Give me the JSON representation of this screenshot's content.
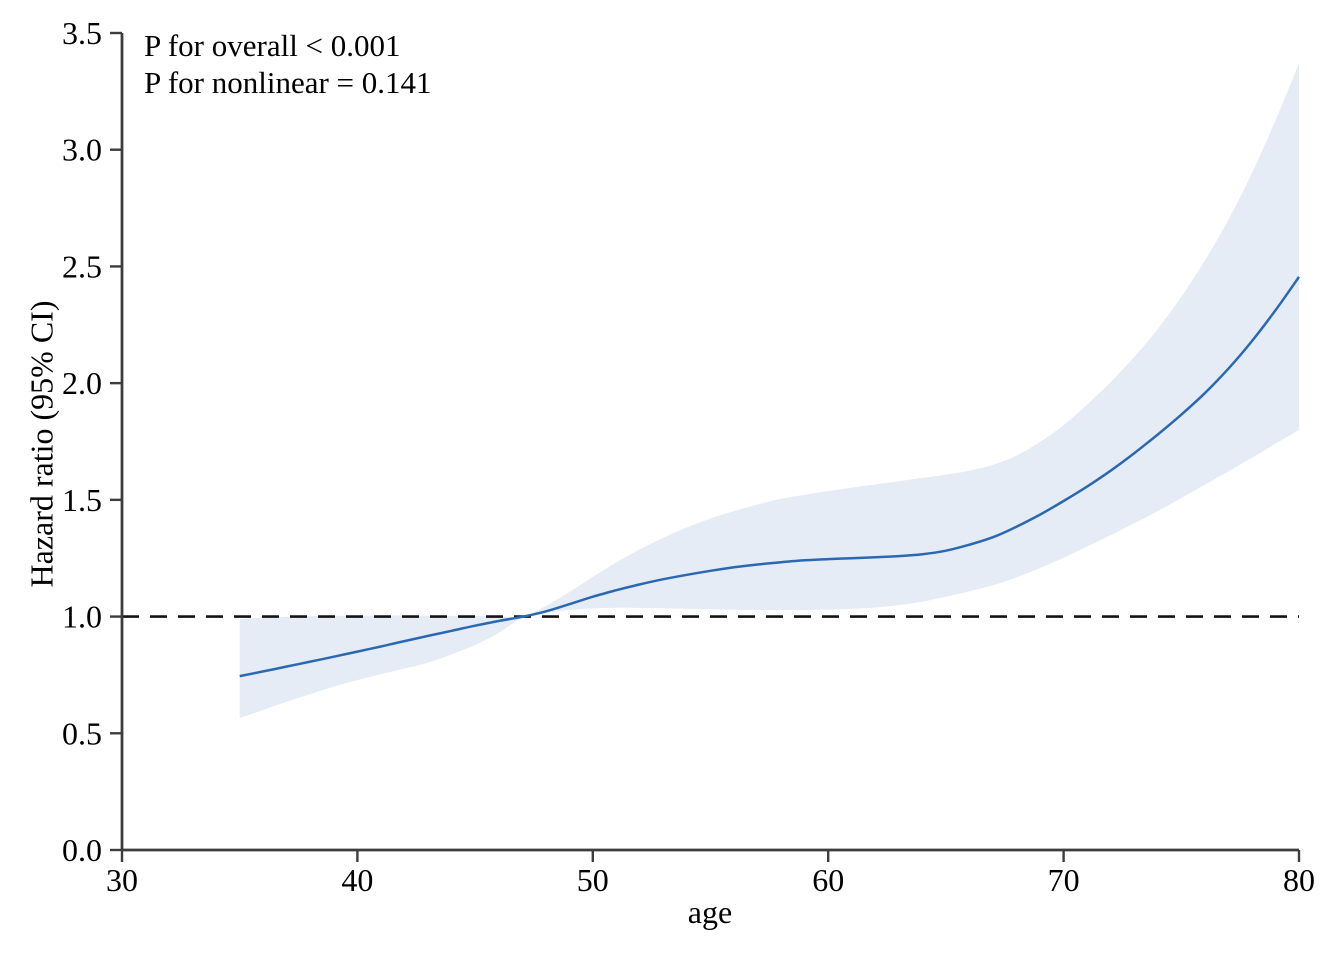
{
  "chart_data": {
    "type": "line",
    "title": "",
    "xlabel": "age",
    "ylabel": "Hazard ratio (95% CI)",
    "xlim": [
      30,
      80
    ],
    "ylim": [
      0,
      3.5
    ],
    "x_ticks": [
      30,
      40,
      50,
      60,
      70,
      80
    ],
    "x_tick_labels": [
      "30",
      "40",
      "50",
      "60",
      "70",
      "80"
    ],
    "y_ticks": [
      0.0,
      0.5,
      1.0,
      1.5,
      2.0,
      2.5,
      3.0,
      3.5
    ],
    "y_tick_labels": [
      "0.0",
      "0.5",
      "1.0",
      "1.5",
      "2.0",
      "2.5",
      "3.0",
      "3.5"
    ],
    "grid": false,
    "legend": "none",
    "reference_line_y": 1.0,
    "annotations": {
      "line1": "P for overall < 0.001",
      "line2": "P for nonlinear = 0.141"
    },
    "colors": {
      "curve": "#2a69b2",
      "ci_band": "#e5ecf5",
      "axis": "#3d3d3d",
      "reference_line": "#141414",
      "text": "#000000"
    },
    "x": [
      35,
      36,
      37,
      38,
      39,
      40,
      41,
      42,
      43,
      44,
      45,
      46,
      47,
      48,
      49,
      50,
      51,
      52,
      53,
      54,
      55,
      56,
      57,
      58,
      59,
      60,
      61,
      62,
      63,
      64,
      65,
      66,
      67,
      68,
      69,
      70,
      71,
      72,
      73,
      74,
      75,
      76,
      77,
      78,
      79,
      80
    ],
    "series": [
      {
        "name": "Hazard ratio",
        "values": [
          0.745,
          0.765,
          0.786,
          0.807,
          0.828,
          0.85,
          0.872,
          0.895,
          0.917,
          0.939,
          0.961,
          0.981,
          0.999,
          1.022,
          1.053,
          1.085,
          1.113,
          1.138,
          1.16,
          1.179,
          1.196,
          1.211,
          1.223,
          1.233,
          1.241,
          1.246,
          1.25,
          1.254,
          1.259,
          1.267,
          1.282,
          1.308,
          1.34,
          1.385,
          1.437,
          1.495,
          1.557,
          1.625,
          1.7,
          1.78,
          1.865,
          1.957,
          2.062,
          2.18,
          2.312,
          2.455
        ]
      },
      {
        "name": "95% CI lower",
        "values": [
          0.565,
          0.6,
          0.635,
          0.668,
          0.7,
          0.728,
          0.753,
          0.777,
          0.802,
          0.838,
          0.878,
          0.93,
          0.995,
          1.015,
          1.028,
          1.035,
          1.038,
          1.037,
          1.035,
          1.033,
          1.031,
          1.029,
          1.028,
          1.028,
          1.028,
          1.03,
          1.033,
          1.039,
          1.049,
          1.064,
          1.085,
          1.108,
          1.134,
          1.168,
          1.208,
          1.252,
          1.3,
          1.348,
          1.4,
          1.452,
          1.508,
          1.565,
          1.622,
          1.68,
          1.74,
          1.8
        ]
      },
      {
        "name": "95% CI upper",
        "values": [
          0.99,
          0.995,
          0.999,
          1.002,
          1.003,
          1.004,
          1.005,
          1.005,
          1.004,
          1.003,
          1.002,
          1.001,
          1.0,
          1.045,
          1.105,
          1.17,
          1.232,
          1.288,
          1.338,
          1.382,
          1.42,
          1.452,
          1.48,
          1.505,
          1.522,
          1.538,
          1.552,
          1.566,
          1.58,
          1.594,
          1.608,
          1.625,
          1.65,
          1.69,
          1.748,
          1.82,
          1.908,
          2.005,
          2.112,
          2.232,
          2.37,
          2.525,
          2.7,
          2.9,
          3.125,
          3.37
        ]
      }
    ]
  }
}
